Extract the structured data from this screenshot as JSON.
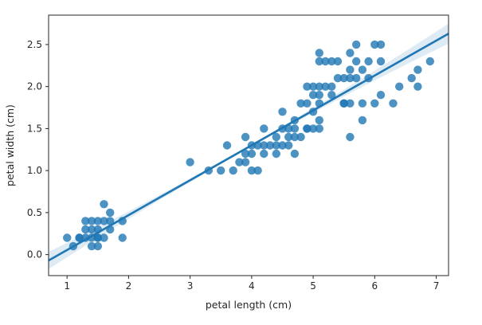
{
  "chart_data": {
    "type": "scatter",
    "title": "",
    "xlabel": "petal length (cm)",
    "ylabel": "petal width (cm)",
    "xlim": [
      0.7,
      7.2
    ],
    "ylim": [
      -0.25,
      2.85
    ],
    "xticks": [
      1,
      2,
      3,
      4,
      5,
      6,
      7
    ],
    "yticks": [
      0.0,
      0.5,
      1.0,
      1.5,
      2.0,
      2.5
    ],
    "ytick_labels": [
      "0.0",
      "0.5",
      "1.0",
      "1.5",
      "2.0",
      "2.5"
    ],
    "grid": false,
    "colors": {
      "points": "#1f77b4",
      "line": "#1f77b4",
      "ci_band": "#1f77b4"
    },
    "regression_line": {
      "x": [
        0.7,
        7.2
      ],
      "y": [
        -0.07,
        2.63
      ]
    },
    "points": [
      [
        1.0,
        0.2
      ],
      [
        1.1,
        0.1
      ],
      [
        1.2,
        0.2
      ],
      [
        1.3,
        0.2
      ],
      [
        1.3,
        0.3
      ],
      [
        1.3,
        0.4
      ],
      [
        1.4,
        0.1
      ],
      [
        1.4,
        0.2
      ],
      [
        1.4,
        0.3
      ],
      [
        1.5,
        0.1
      ],
      [
        1.5,
        0.2
      ],
      [
        1.5,
        0.3
      ],
      [
        1.5,
        0.4
      ],
      [
        1.6,
        0.2
      ],
      [
        1.6,
        0.6
      ],
      [
        1.7,
        0.3
      ],
      [
        1.7,
        0.4
      ],
      [
        1.7,
        0.5
      ],
      [
        1.9,
        0.2
      ],
      [
        1.9,
        0.4
      ],
      [
        1.4,
        0.4
      ],
      [
        1.6,
        0.4
      ],
      [
        1.2,
        0.2
      ],
      [
        1.5,
        0.2
      ],
      [
        3.0,
        1.1
      ],
      [
        3.3,
        1.0
      ],
      [
        3.5,
        1.0
      ],
      [
        3.6,
        1.3
      ],
      [
        3.7,
        1.0
      ],
      [
        3.8,
        1.1
      ],
      [
        3.9,
        1.1
      ],
      [
        3.9,
        1.4
      ],
      [
        3.9,
        1.2
      ],
      [
        4.0,
        1.0
      ],
      [
        4.0,
        1.2
      ],
      [
        4.0,
        1.3
      ],
      [
        4.1,
        1.0
      ],
      [
        4.1,
        1.3
      ],
      [
        4.2,
        1.2
      ],
      [
        4.2,
        1.3
      ],
      [
        4.2,
        1.5
      ],
      [
        4.3,
        1.3
      ],
      [
        4.4,
        1.2
      ],
      [
        4.4,
        1.3
      ],
      [
        4.4,
        1.4
      ],
      [
        4.5,
        1.3
      ],
      [
        4.5,
        1.5
      ],
      [
        4.5,
        1.7
      ],
      [
        4.6,
        1.3
      ],
      [
        4.6,
        1.4
      ],
      [
        4.6,
        1.5
      ],
      [
        4.7,
        1.2
      ],
      [
        4.7,
        1.4
      ],
      [
        4.7,
        1.5
      ],
      [
        4.7,
        1.6
      ],
      [
        4.8,
        1.4
      ],
      [
        4.8,
        1.8
      ],
      [
        4.9,
        1.5
      ],
      [
        4.9,
        1.8
      ],
      [
        5.0,
        1.7
      ],
      [
        5.0,
        1.5
      ],
      [
        5.0,
        2.0
      ],
      [
        5.1,
        1.5
      ],
      [
        5.1,
        1.6
      ],
      [
        5.1,
        1.8
      ],
      [
        5.1,
        1.9
      ],
      [
        5.1,
        2.0
      ],
      [
        5.1,
        2.3
      ],
      [
        5.1,
        2.4
      ],
      [
        5.2,
        2.0
      ],
      [
        5.2,
        2.3
      ],
      [
        5.3,
        1.9
      ],
      [
        5.3,
        2.3
      ],
      [
        5.4,
        2.1
      ],
      [
        5.4,
        2.3
      ],
      [
        5.5,
        1.8
      ],
      [
        5.5,
        2.1
      ],
      [
        5.6,
        1.4
      ],
      [
        5.6,
        1.8
      ],
      [
        5.6,
        2.1
      ],
      [
        5.6,
        2.2
      ],
      [
        5.6,
        2.4
      ],
      [
        5.7,
        2.1
      ],
      [
        5.7,
        2.3
      ],
      [
        5.7,
        2.5
      ],
      [
        5.8,
        1.6
      ],
      [
        5.8,
        1.8
      ],
      [
        5.8,
        2.2
      ],
      [
        5.9,
        2.1
      ],
      [
        5.9,
        2.3
      ],
      [
        6.0,
        1.8
      ],
      [
        6.0,
        2.5
      ],
      [
        6.1,
        1.9
      ],
      [
        6.1,
        2.3
      ],
      [
        6.1,
        2.5
      ],
      [
        6.3,
        1.8
      ],
      [
        6.4,
        2.0
      ],
      [
        6.6,
        2.1
      ],
      [
        6.7,
        2.0
      ],
      [
        6.7,
        2.2
      ],
      [
        6.9,
        2.3
      ],
      [
        5.0,
        1.9
      ],
      [
        5.3,
        2.0
      ],
      [
        4.9,
        2.0
      ],
      [
        5.5,
        1.8
      ],
      [
        4.9,
        1.5
      ]
    ]
  }
}
